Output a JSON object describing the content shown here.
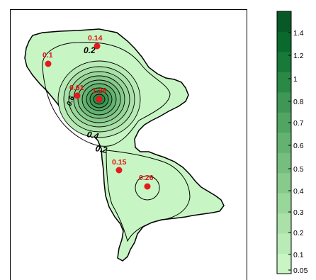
{
  "map": {
    "colors": {
      "land_base": "#c8f5c4",
      "outline": "#000000",
      "contour": "#000000",
      "point": "#e41a1c",
      "label": "#e41a1c",
      "ramp_low": "#ccf7c8",
      "ramp_high": "#0a5e34"
    },
    "contour_labels": [
      "0.2",
      "0.4",
      "0.2",
      "0.6"
    ],
    "points": [
      {
        "label": "0.14",
        "value": 0.14
      },
      {
        "label": "0.1",
        "value": 0.1
      },
      {
        "label": "0.61",
        "value": 0.61
      },
      {
        "label": "1.28",
        "value": 1.28
      },
      {
        "label": "0.15",
        "value": 0.15
      },
      {
        "label": "0.26",
        "value": 0.26
      }
    ]
  },
  "legend": {
    "ticks": [
      {
        "label": "1.4",
        "value": 1.4
      },
      {
        "label": "1.2",
        "value": 1.2
      },
      {
        "label": "1",
        "value": 1.0
      },
      {
        "label": "0.8",
        "value": 0.8
      },
      {
        "label": "0.7",
        "value": 0.7
      },
      {
        "label": "0.6",
        "value": 0.6
      },
      {
        "label": "0.5",
        "value": 0.5
      },
      {
        "label": "0.4",
        "value": 0.4
      },
      {
        "label": "0.3",
        "value": 0.3
      },
      {
        "label": "0.2",
        "value": 0.2
      },
      {
        "label": "0.1",
        "value": 0.1
      },
      {
        "label": "0.05",
        "value": 0.05
      }
    ],
    "color_bands": [
      "#c9f5c5",
      "#b9ebb6",
      "#a9e1a8",
      "#98d69a",
      "#87ca8c",
      "#75be7e",
      "#63b270",
      "#51a562",
      "#3e9754",
      "#2b8946",
      "#187a38",
      "#0a6a2e",
      "#075a27"
    ]
  }
}
